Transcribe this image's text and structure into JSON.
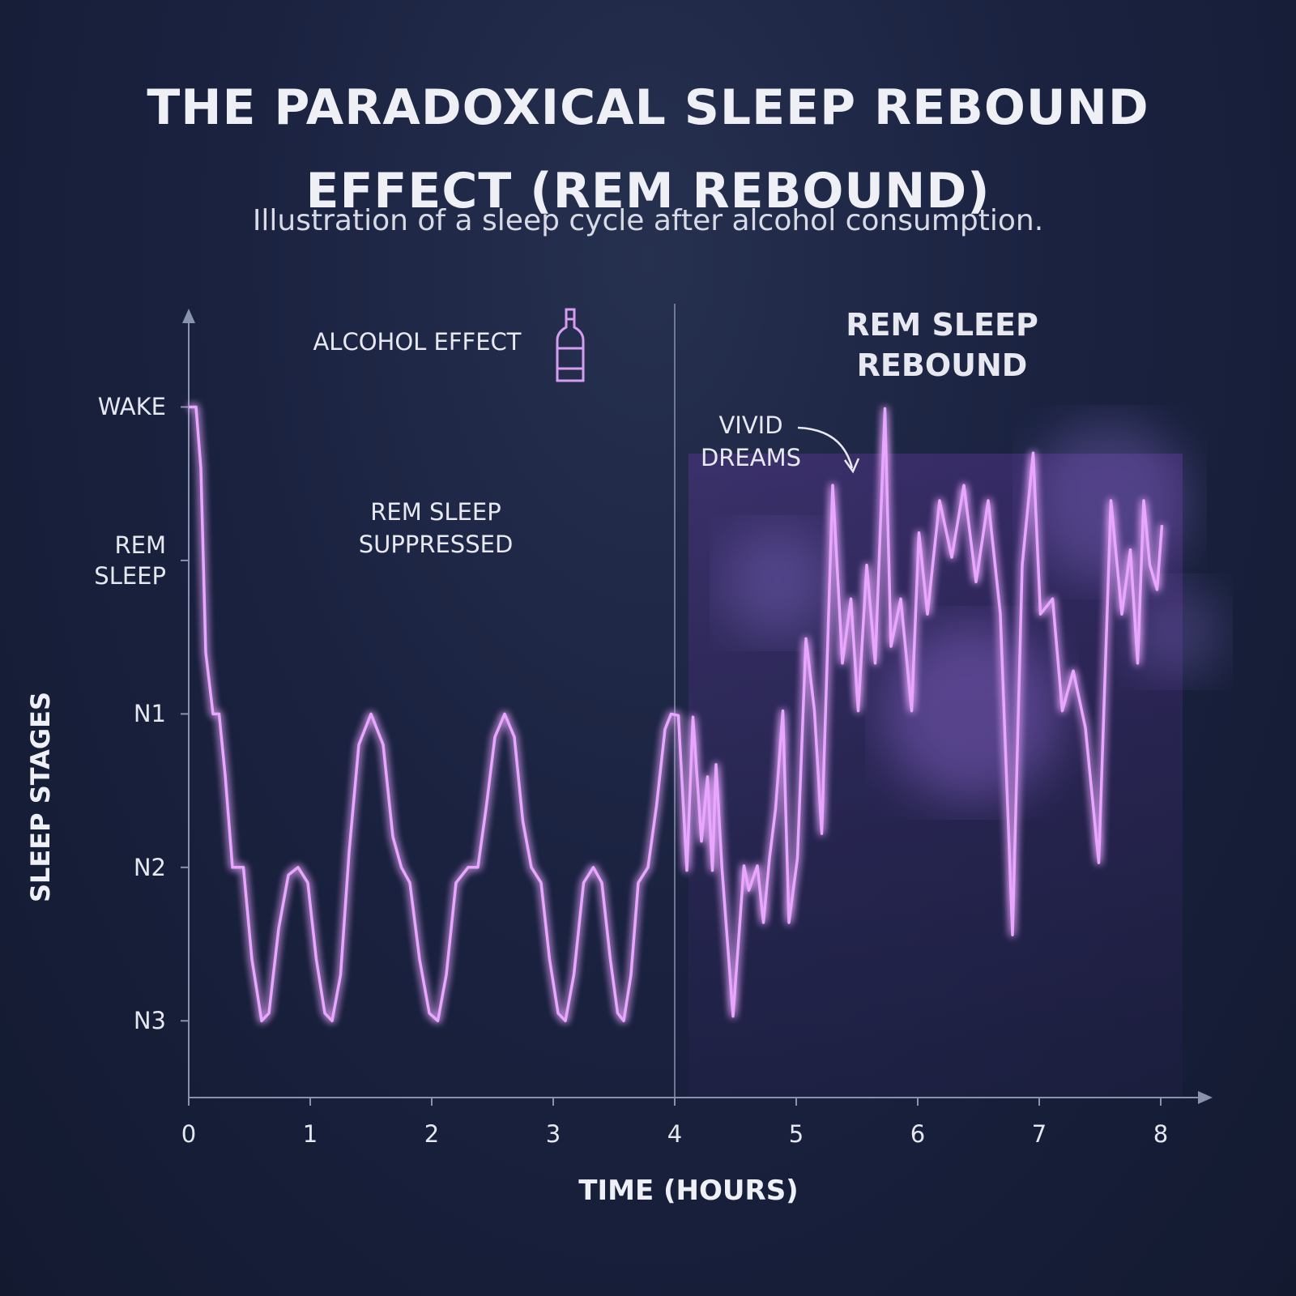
{
  "chart_data": {
    "type": "line",
    "title": "THE PARADOXICAL SLEEP REBOUND EFFECT (REM REBOUND)",
    "subtitle": "Illustration of a sleep cycle after alcohol consumption.",
    "x_label": "TIME (HOURS)",
    "y_label": "SLEEP STAGES",
    "annotations": {
      "alcohol_effect": "ALCOHOL EFFECT",
      "rem_suppressed": "REM SLEEP SUPPRESSED",
      "rem_rebound": "REM SLEEP REBOUND",
      "vivid_dreams": "VIVID DREAMS"
    },
    "color": "#e9a6ff",
    "xlim": [
      0,
      8.4
    ],
    "xticks": [
      0,
      1,
      2,
      3,
      4,
      5,
      6,
      7,
      8
    ],
    "ylim": [
      -0.5,
      4.62
    ],
    "yticks": [
      {
        "value": 0,
        "label": "N3"
      },
      {
        "value": 1,
        "label": "N2"
      },
      {
        "value": 2,
        "label": "N1"
      },
      {
        "value": 3,
        "label": "REM SLEEP"
      },
      {
        "value": 4,
        "label": "WAKE"
      }
    ],
    "x": [
      0,
      0.06,
      0.1,
      0.14,
      0.2,
      0.25,
      0.3,
      0.36,
      0.45,
      0.52,
      0.6,
      0.66,
      0.74,
      0.82,
      0.9,
      0.98,
      1.05,
      1.12,
      1.18,
      1.25,
      1.32,
      1.4,
      1.5,
      1.6,
      1.68,
      1.75,
      1.82,
      1.9,
      1.98,
      2.05,
      2.12,
      2.2,
      2.3,
      2.38,
      2.45,
      2.52,
      2.6,
      2.68,
      2.75,
      2.82,
      2.9,
      2.97,
      3.04,
      3.1,
      3.17,
      3.25,
      3.33,
      3.4,
      3.47,
      3.53,
      3.58,
      3.64,
      3.7,
      3.78,
      3.85,
      3.92,
      3.97,
      4.03,
      4.1,
      4.15,
      4.22,
      4.27,
      4.31,
      4.34,
      4.39,
      4.48,
      4.57,
      4.61,
      4.68,
      4.73,
      4.78,
      4.83,
      4.89,
      4.94,
      5.01,
      5.08,
      5.15,
      5.21,
      5.3,
      5.38,
      5.45,
      5.51,
      5.58,
      5.65,
      5.73,
      5.78,
      5.86,
      5.95,
      6.01,
      6.08,
      6.18,
      6.28,
      6.38,
      6.48,
      6.58,
      6.68,
      6.78,
      6.86,
      6.95,
      7.01,
      7.11,
      7.19,
      7.28,
      7.38,
      7.49,
      7.59,
      7.68,
      7.75,
      7.81,
      7.86,
      7.91,
      7.97,
      8.01
    ],
    "values": [
      4,
      4,
      3.6,
      2.4,
      2,
      2,
      1.6,
      1,
      1,
      0.4,
      0,
      0.05,
      0.6,
      0.95,
      1,
      0.9,
      0.4,
      0.05,
      0,
      0.3,
      1.1,
      1.8,
      2,
      1.8,
      1.2,
      1,
      0.9,
      0.4,
      0.05,
      0,
      0.3,
      0.9,
      1,
      1,
      1.4,
      1.85,
      2,
      1.85,
      1.3,
      1,
      0.9,
      0.4,
      0.05,
      0,
      0.3,
      0.9,
      1,
      0.9,
      0.4,
      0.05,
      0,
      0.3,
      0.9,
      1,
      1.4,
      1.9,
      2,
      1.99,
      0.98,
      1.98,
      1.17,
      1.59,
      0.98,
      1.67,
      0.98,
      0.03,
      1.01,
      0.85,
      1.01,
      0.64,
      1.06,
      1.38,
      2.02,
      0.64,
      1.06,
      2.49,
      2.02,
      1.22,
      3.49,
      2.33,
      2.75,
      2.02,
      2.97,
      2.33,
      3.99,
      2.44,
      2.75,
      2.02,
      3.18,
      2.65,
      3.39,
      3.02,
      3.49,
      2.86,
      3.39,
      2.65,
      0.56,
      2.97,
      3.7,
      2.65,
      2.75,
      2.02,
      2.28,
      1.91,
      1.03,
      3.39,
      2.65,
      3.07,
      2.33,
      3.39,
      2.97,
      2.81,
      3.23
    ]
  }
}
